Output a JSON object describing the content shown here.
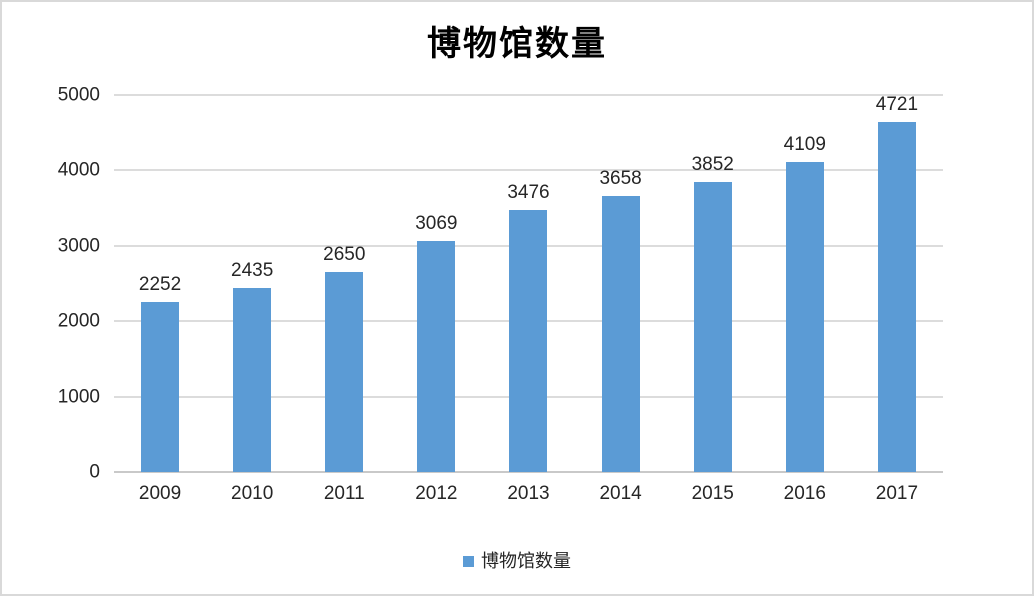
{
  "chart_data": {
    "type": "bar",
    "title": "博物馆数量",
    "categories": [
      "2009",
      "2010",
      "2011",
      "2012",
      "2013",
      "2014",
      "2015",
      "2016",
      "2017"
    ],
    "values": [
      2252,
      2435,
      2650,
      3069,
      3476,
      3658,
      3852,
      4109,
      4721
    ],
    "series_name": "博物馆数量",
    "legend": [
      "博物馆数量"
    ],
    "legend_position": "bottom",
    "ylim": [
      0,
      5000
    ],
    "yticks": [
      0,
      1000,
      2000,
      3000,
      4000,
      5000
    ],
    "ytick_labels": [
      "0",
      "1000",
      "2000",
      "3000",
      "4000",
      "5000"
    ],
    "grid": "horizontal",
    "colors": {
      "bar": "#5B9BD5",
      "gridline": "#DCDCDC",
      "axis_line": "#C9C9C9",
      "text": "#262626",
      "title": "#000000"
    }
  }
}
